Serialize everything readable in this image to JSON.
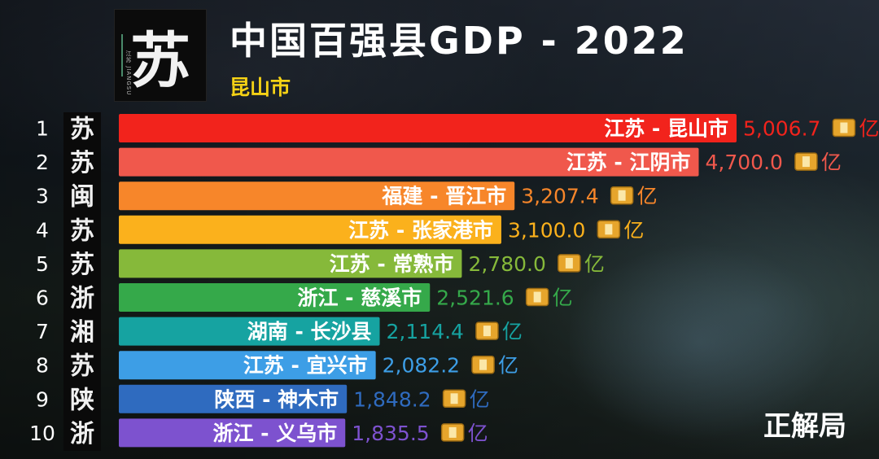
{
  "header": {
    "title": "中国百强县GDP - 2022",
    "highlight": "昆山市",
    "watermark": "正解局"
  },
  "logo": {
    "glyph": "苏",
    "side_text": "江苏 JIANGSU"
  },
  "colors": {
    "title": "#ffffff",
    "highlight": "#f5d215"
  },
  "chart_data": {
    "type": "bar",
    "orientation": "horizontal",
    "title": "中国百强县GDP - 2022",
    "unit": "亿",
    "xlim": [
      0,
      5006.7
    ],
    "grid": false,
    "ranks": [
      "1",
      "2",
      "3",
      "4",
      "5",
      "6",
      "7",
      "8",
      "9",
      "10"
    ],
    "categories": [
      "江苏 - 昆山市",
      "江苏 - 江阴市",
      "福建 - 晋江市",
      "江苏 - 张家港市",
      "江苏 - 常熟市",
      "浙江 - 慈溪市",
      "湖南 - 长沙县",
      "江苏 - 宜兴市",
      "陕西 - 神木市",
      "浙江 - 义乌市"
    ],
    "values": [
      5006.7,
      4700.0,
      3207.4,
      3100.0,
      2780.0,
      2521.6,
      2114.4,
      2082.2,
      1848.2,
      1835.5
    ],
    "value_labels": [
      "5,006.7",
      "4,700.0",
      "3,207.4",
      "3,100.0",
      "2,780.0",
      "2,521.6",
      "2,114.4",
      "2,082.2",
      "1,848.2",
      "1,835.5"
    ],
    "province_glyphs": [
      "苏",
      "苏",
      "闽",
      "苏",
      "苏",
      "浙",
      "湘",
      "苏",
      "陕",
      "浙"
    ],
    "bar_colors": [
      "#f2231c",
      "#f0584c",
      "#f7862a",
      "#fbb11c",
      "#86b93a",
      "#35a94a",
      "#16a3a1",
      "#3d9ee6",
      "#2f6bbf",
      "#7d52cf"
    ],
    "value_colors": [
      "#f2231c",
      "#f0584c",
      "#f7862a",
      "#fbb11c",
      "#86b93a",
      "#35a94a",
      "#16a3a1",
      "#3d9ee6",
      "#2f6bbf",
      "#7d52cf"
    ]
  }
}
